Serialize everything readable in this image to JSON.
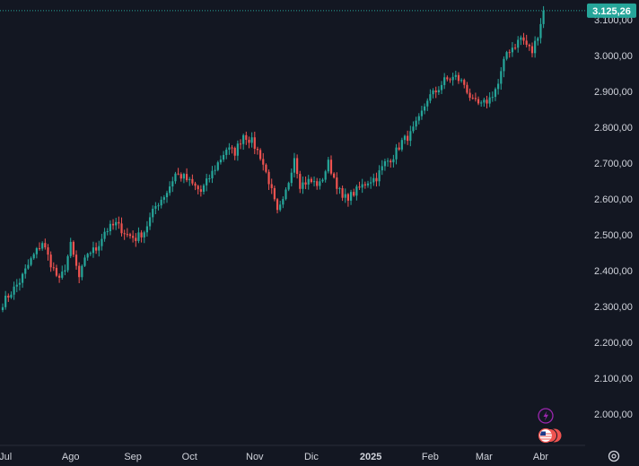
{
  "chart_data": {
    "type": "candlestick",
    "title": "",
    "xlabel": "",
    "ylabel": "",
    "ylim": [
      1920,
      3150
    ],
    "grid": false,
    "colors": {
      "up": "#26a69a",
      "down": "#ef5350",
      "background": "#131722",
      "axis_text": "#d1d4dc",
      "price_line": "#26a69a"
    },
    "y_ticks": [
      {
        "value": 2000,
        "label": "2.000,00"
      },
      {
        "value": 2100,
        "label": "2.100,00"
      },
      {
        "value": 2200,
        "label": "2.200,00"
      },
      {
        "value": 2300,
        "label": "2.300,00"
      },
      {
        "value": 2400,
        "label": "2.400,00"
      },
      {
        "value": 2500,
        "label": "2.500,00"
      },
      {
        "value": 2600,
        "label": "2.600,00"
      },
      {
        "value": 2700,
        "label": "2.700,00"
      },
      {
        "value": 2800,
        "label": "2.800,00"
      },
      {
        "value": 2900,
        "label": "2.900,00"
      },
      {
        "value": 3000,
        "label": "3.000,00"
      },
      {
        "value": 3100,
        "label": "3.100,00"
      }
    ],
    "x_ticks": [
      {
        "label": "Jul",
        "bar": 1,
        "bold": false
      },
      {
        "label": "Ago",
        "bar": 24,
        "bold": false
      },
      {
        "label": "Sep",
        "bar": 46,
        "bold": false
      },
      {
        "label": "Oct",
        "bar": 66,
        "bold": false
      },
      {
        "label": "Nov",
        "bar": 89,
        "bold": false
      },
      {
        "label": "Dic",
        "bar": 109,
        "bold": false
      },
      {
        "label": "2025",
        "bar": 130,
        "bold": true
      },
      {
        "label": "Feb",
        "bar": 151,
        "bold": false
      },
      {
        "label": "Mar",
        "bar": 170,
        "bold": false
      },
      {
        "label": "Abr",
        "bar": 190,
        "bold": false
      }
    ],
    "last_price": {
      "value": 3125.26,
      "label": "3.125,26"
    },
    "anchors": [
      [
        0,
        2310
      ],
      [
        3,
        2340
      ],
      [
        6,
        2370
      ],
      [
        10,
        2430
      ],
      [
        14,
        2480
      ],
      [
        17,
        2420
      ],
      [
        20,
        2370
      ],
      [
        22,
        2410
      ],
      [
        24,
        2470
      ],
      [
        27,
        2380
      ],
      [
        30,
        2450
      ],
      [
        33,
        2460
      ],
      [
        36,
        2510
      ],
      [
        40,
        2530
      ],
      [
        44,
        2500
      ],
      [
        47,
        2490
      ],
      [
        50,
        2510
      ],
      [
        54,
        2580
      ],
      [
        58,
        2620
      ],
      [
        61,
        2670
      ],
      [
        64,
        2660
      ],
      [
        67,
        2640
      ],
      [
        70,
        2620
      ],
      [
        73,
        2660
      ],
      [
        76,
        2700
      ],
      [
        79,
        2740
      ],
      [
        82,
        2730
      ],
      [
        85,
        2780
      ],
      [
        88,
        2760
      ],
      [
        91,
        2720
      ],
      [
        94,
        2650
      ],
      [
        97,
        2560
      ],
      [
        99,
        2590
      ],
      [
        101,
        2650
      ],
      [
        103,
        2720
      ],
      [
        105,
        2640
      ],
      [
        108,
        2650
      ],
      [
        112,
        2640
      ],
      [
        115,
        2700
      ],
      [
        117,
        2660
      ],
      [
        120,
        2600
      ],
      [
        123,
        2610
      ],
      [
        126,
        2630
      ],
      [
        129,
        2650
      ],
      [
        132,
        2660
      ],
      [
        135,
        2700
      ],
      [
        138,
        2720
      ],
      [
        141,
        2760
      ],
      [
        144,
        2780
      ],
      [
        147,
        2820
      ],
      [
        150,
        2880
      ],
      [
        153,
        2900
      ],
      [
        156,
        2930
      ],
      [
        160,
        2940
      ],
      [
        163,
        2920
      ],
      [
        166,
        2870
      ],
      [
        169,
        2860
      ],
      [
        172,
        2880
      ],
      [
        175,
        2920
      ],
      [
        178,
        3010
      ],
      [
        181,
        3030
      ],
      [
        183,
        3050
      ],
      [
        185,
        3030
      ],
      [
        187,
        3010
      ],
      [
        189,
        3060
      ],
      [
        191,
        3125.26
      ]
    ],
    "n_bars": 192
  },
  "footer_icons": [
    "lightning-icon",
    "us-flag-icon",
    "settings-icon"
  ]
}
